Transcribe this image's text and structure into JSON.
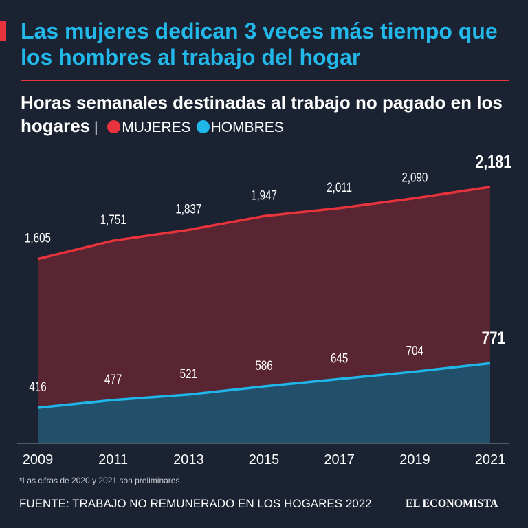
{
  "chart_data": {
    "type": "area",
    "title": "Las mujeres dedican 3 veces más tiempo que los hombres al trabajo del hogar",
    "subtitle": "Horas semanales destinadas al trabajo no pagado en los hogares",
    "x": [
      2009,
      2011,
      2013,
      2015,
      2017,
      2019,
      2021
    ],
    "series": [
      {
        "name": "MUJERES",
        "color": "#e8333c",
        "fill": "#5a2532",
        "values": [
          1605,
          1751,
          1837,
          1947,
          2011,
          2090,
          2181
        ],
        "value_labels": [
          "1,605",
          "1,751",
          "1,837",
          "1,947",
          "2,011",
          "2,090",
          "2,181"
        ]
      },
      {
        "name": "HOMBRES",
        "color": "#1fb6ea",
        "fill": "#22506b",
        "values": [
          416,
          477,
          521,
          586,
          645,
          704,
          771
        ],
        "value_labels": [
          "416",
          "477",
          "521",
          "586",
          "645",
          "704",
          "771"
        ]
      }
    ],
    "xlim": [
      2009,
      2021
    ],
    "ylim": [
      130,
      2400
    ],
    "note": "*Las cifras de 2020 y 2021 son preliminares.",
    "source": "FUENTE: TRABAJO NO REMUNERADO EN LOS HOGARES 2022",
    "brand": "EL ECONOMISTA"
  }
}
